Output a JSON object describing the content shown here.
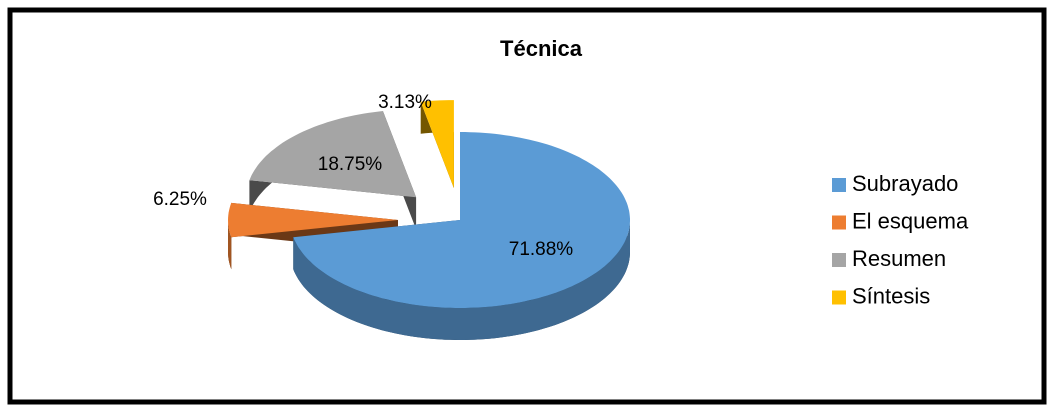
{
  "chart_data": {
    "type": "pie3d",
    "title": "Técnica",
    "categories": [
      "Subrayado",
      "El esquema",
      "Resumen",
      "Síntesis"
    ],
    "values": [
      71.88,
      6.25,
      18.75,
      3.13
    ],
    "value_labels": [
      "71.88%",
      "6.25%",
      "18.75%",
      "3.13%"
    ],
    "colors": [
      "#5b9bd5",
      "#ed7d31",
      "#a5a5a5",
      "#ffc000"
    ],
    "legend": "right"
  }
}
